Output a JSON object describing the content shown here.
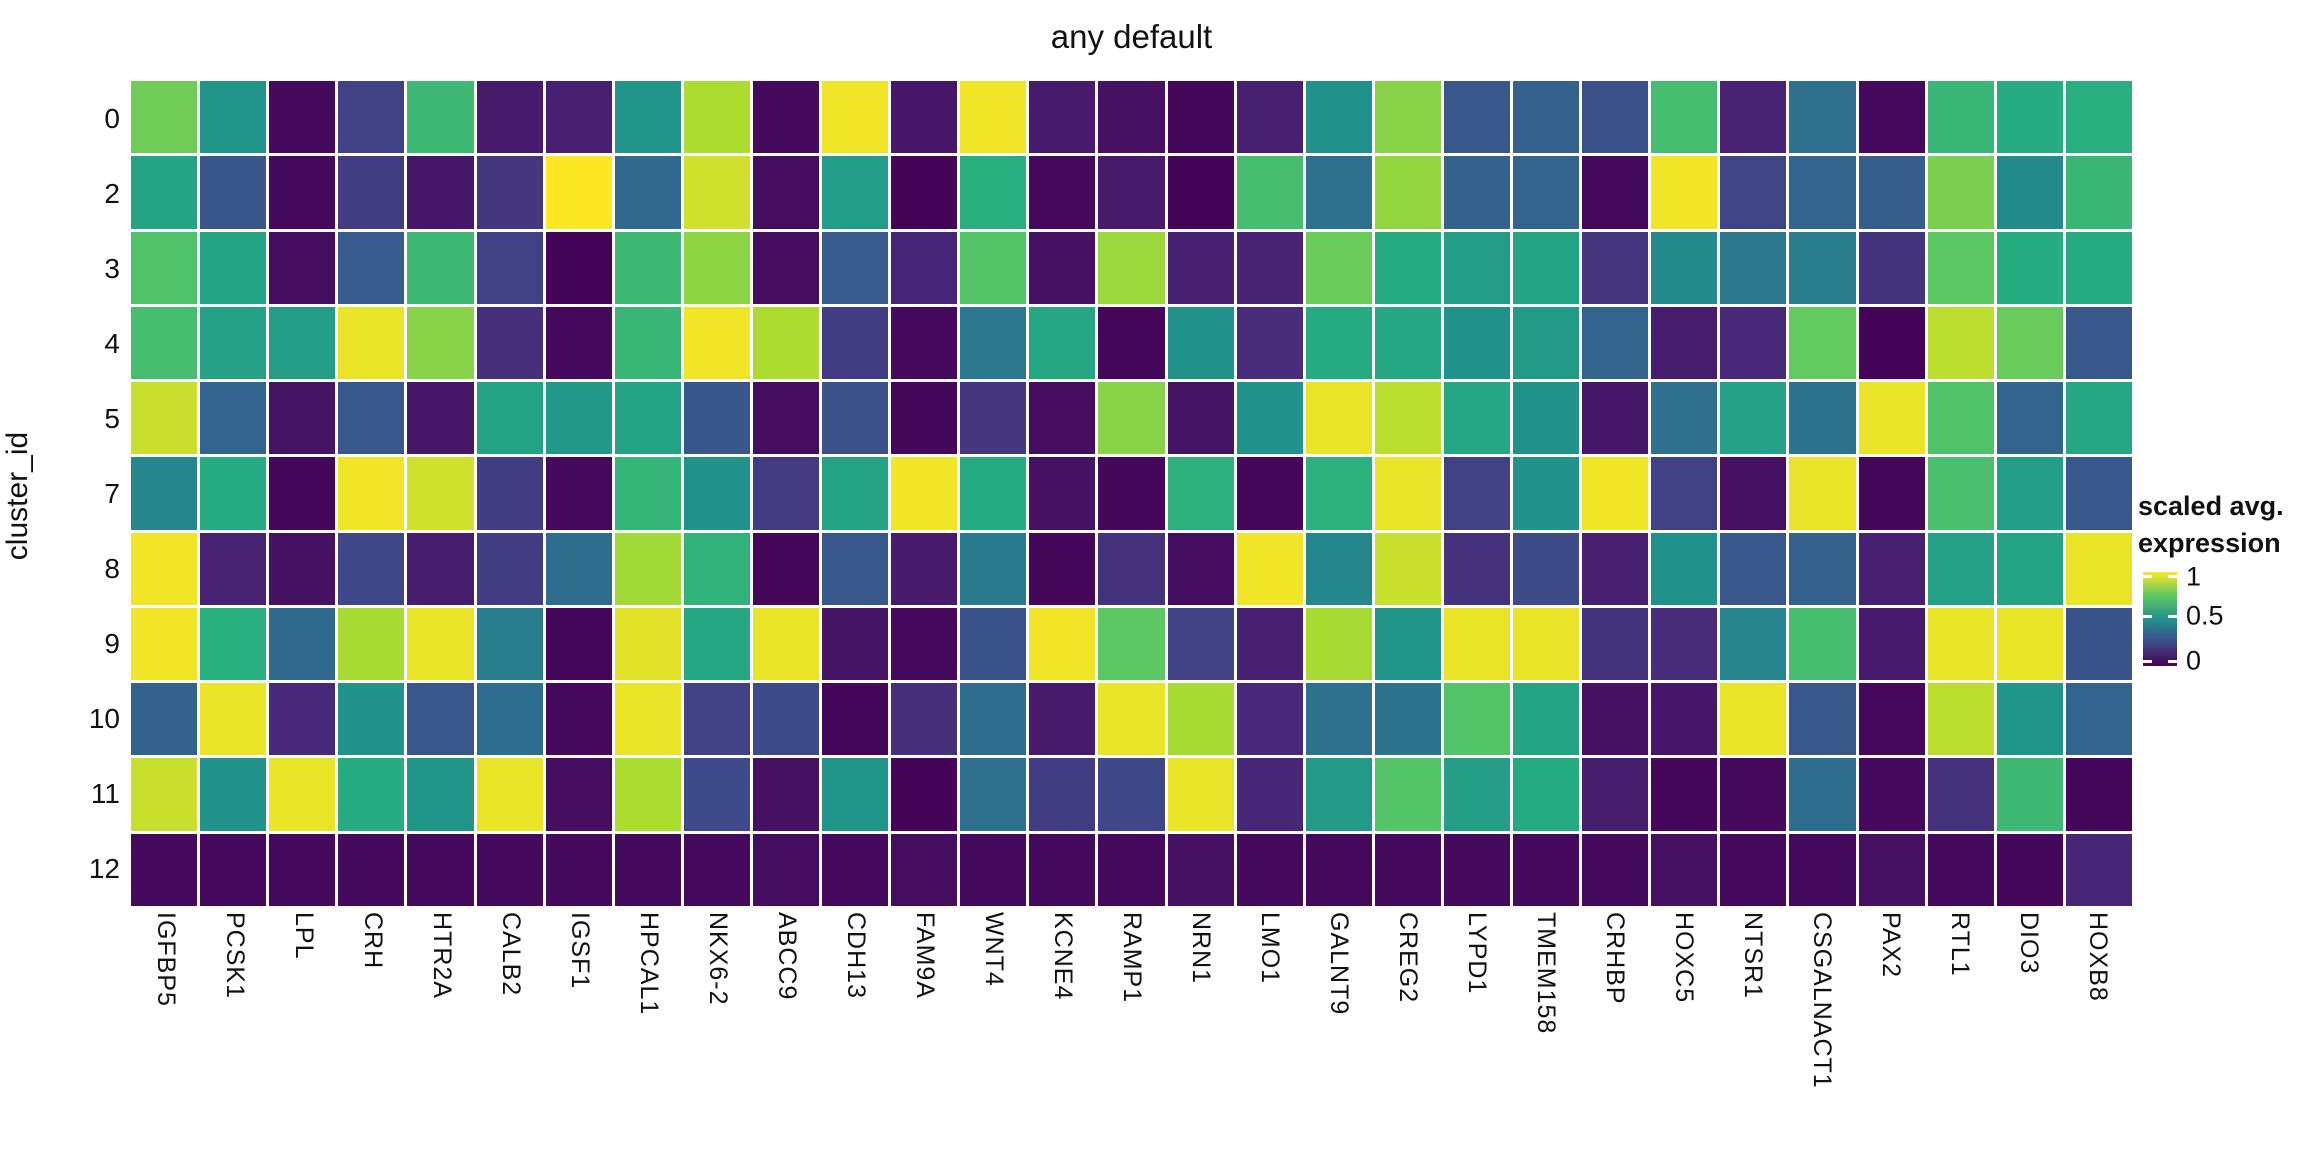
{
  "title": "any default",
  "y_axis": {
    "label": "cluster_id"
  },
  "legend": {
    "title_line1": "scaled avg.",
    "title_line2": "expression",
    "tick_labels": [
      "1",
      "0.5",
      "0"
    ],
    "tick_values": [
      1,
      0.5,
      0
    ]
  },
  "colors": {
    "background": "#ffffff",
    "text": "#111111",
    "viridis_stops": [
      "#440154",
      "#482878",
      "#3e4a89",
      "#31688e",
      "#21918c",
      "#27ad81",
      "#5cc863",
      "#aadc32",
      "#fde725"
    ]
  },
  "chart_data": {
    "type": "heatmap",
    "title": "any default",
    "xlabel": "",
    "ylabel": "cluster_id",
    "legend_title": "scaled avg. expression",
    "colorscale": "viridis",
    "domain": [
      0,
      1
    ],
    "grid": false,
    "legend_position": "right",
    "columns": [
      "IGFBP5",
      "PCSK1",
      "LPL",
      "CRH",
      "HTR2A",
      "CALB2",
      "IGSF1",
      "HPCAL1",
      "NKX6-2",
      "ABCC9",
      "CDH13",
      "FAM9A",
      "WNT4",
      "KCNE4",
      "RAMP1",
      "NRN1",
      "LMO1",
      "GALNT9",
      "CREG2",
      "LYPD1",
      "TMEM158",
      "CRHBP",
      "HOXC5",
      "NTSR1",
      "CSGALNACT1",
      "PAX2",
      "RTL1",
      "DIO3",
      "HOXB8"
    ],
    "rows": [
      "0",
      "2",
      "3",
      "4",
      "5",
      "7",
      "8",
      "9",
      "10",
      "11",
      "12"
    ],
    "values": [
      [
        0.78,
        0.52,
        0.03,
        0.22,
        0.68,
        0.08,
        0.1,
        0.52,
        0.88,
        0.03,
        0.98,
        0.07,
        0.98,
        0.08,
        0.05,
        0.02,
        0.1,
        0.5,
        0.82,
        0.31,
        0.35,
        0.28,
        0.7,
        0.11,
        0.4,
        0.03,
        0.67,
        0.62,
        0.63
      ],
      [
        0.58,
        0.3,
        0.03,
        0.2,
        0.07,
        0.18,
        1.0,
        0.38,
        0.93,
        0.04,
        0.55,
        0.01,
        0.63,
        0.03,
        0.08,
        0.01,
        0.7,
        0.4,
        0.84,
        0.35,
        0.36,
        0.03,
        0.98,
        0.23,
        0.36,
        0.33,
        0.8,
        0.48,
        0.67
      ],
      [
        0.72,
        0.58,
        0.04,
        0.32,
        0.68,
        0.22,
        0.01,
        0.68,
        0.83,
        0.04,
        0.32,
        0.12,
        0.73,
        0.05,
        0.85,
        0.1,
        0.11,
        0.77,
        0.62,
        0.55,
        0.58,
        0.18,
        0.48,
        0.42,
        0.44,
        0.17,
        0.75,
        0.62,
        0.62
      ],
      [
        0.7,
        0.57,
        0.55,
        0.97,
        0.82,
        0.15,
        0.03,
        0.67,
        0.98,
        0.88,
        0.2,
        0.03,
        0.42,
        0.6,
        0.02,
        0.5,
        0.14,
        0.61,
        0.6,
        0.5,
        0.54,
        0.36,
        0.09,
        0.13,
        0.76,
        0.01,
        0.9,
        0.77,
        0.31
      ],
      [
        0.92,
        0.36,
        0.06,
        0.31,
        0.07,
        0.58,
        0.53,
        0.58,
        0.3,
        0.04,
        0.28,
        0.02,
        0.18,
        0.04,
        0.82,
        0.06,
        0.51,
        0.97,
        0.9,
        0.6,
        0.5,
        0.07,
        0.4,
        0.57,
        0.41,
        0.97,
        0.72,
        0.36,
        0.6
      ],
      [
        0.47,
        0.62,
        0.02,
        0.98,
        0.93,
        0.2,
        0.03,
        0.66,
        0.51,
        0.19,
        0.58,
        0.98,
        0.61,
        0.05,
        0.02,
        0.64,
        0.02,
        0.64,
        0.97,
        0.22,
        0.51,
        0.98,
        0.22,
        0.05,
        0.97,
        0.02,
        0.71,
        0.56,
        0.31
      ],
      [
        0.98,
        0.11,
        0.05,
        0.24,
        0.09,
        0.2,
        0.39,
        0.86,
        0.65,
        0.02,
        0.31,
        0.08,
        0.43,
        0.02,
        0.16,
        0.04,
        0.98,
        0.47,
        0.92,
        0.16,
        0.26,
        0.1,
        0.5,
        0.31,
        0.35,
        0.1,
        0.57,
        0.58,
        0.97
      ],
      [
        0.98,
        0.63,
        0.38,
        0.87,
        0.97,
        0.44,
        0.02,
        0.96,
        0.6,
        0.97,
        0.06,
        0.03,
        0.29,
        0.98,
        0.75,
        0.22,
        0.1,
        0.87,
        0.52,
        0.97,
        0.97,
        0.17,
        0.14,
        0.46,
        0.7,
        0.08,
        0.97,
        0.97,
        0.29
      ],
      [
        0.35,
        0.97,
        0.13,
        0.51,
        0.31,
        0.39,
        0.03,
        0.97,
        0.22,
        0.26,
        0.02,
        0.15,
        0.39,
        0.08,
        0.97,
        0.87,
        0.13,
        0.4,
        0.41,
        0.73,
        0.58,
        0.05,
        0.07,
        0.97,
        0.31,
        0.03,
        0.9,
        0.52,
        0.36
      ],
      [
        0.92,
        0.51,
        0.97,
        0.62,
        0.52,
        0.97,
        0.04,
        0.88,
        0.25,
        0.05,
        0.52,
        0.01,
        0.4,
        0.2,
        0.24,
        0.97,
        0.12,
        0.54,
        0.73,
        0.56,
        0.61,
        0.09,
        0.02,
        0.03,
        0.39,
        0.03,
        0.16,
        0.68,
        0.02
      ],
      [
        0.03,
        0.03,
        0.03,
        0.03,
        0.03,
        0.03,
        0.03,
        0.03,
        0.03,
        0.04,
        0.03,
        0.04,
        0.03,
        0.03,
        0.03,
        0.05,
        0.03,
        0.03,
        0.03,
        0.03,
        0.03,
        0.03,
        0.05,
        0.03,
        0.03,
        0.05,
        0.03,
        0.02,
        0.12
      ]
    ]
  }
}
